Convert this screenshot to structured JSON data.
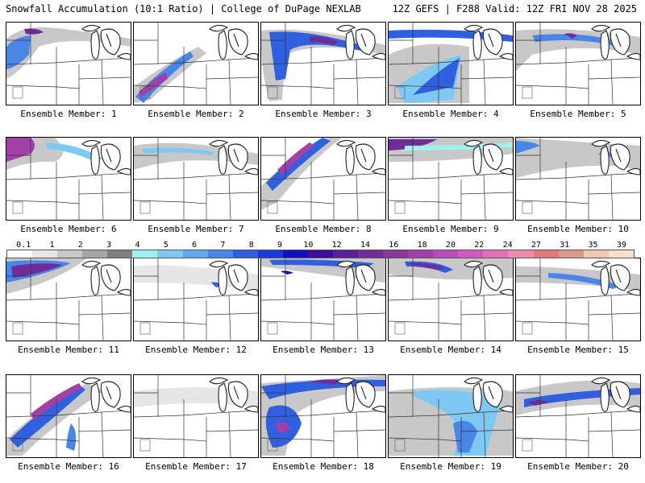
{
  "header": {
    "left": "Snowfall Accumulation (10:1 Ratio) | College of DuPage NEXLAB",
    "right": "12Z GEFS | F288 Valid: 12Z FRI NOV 28 2025"
  },
  "legend": {
    "labels": [
      "0.1",
      "1",
      "2",
      "3",
      "4",
      "5",
      "6",
      "7",
      "8",
      "9",
      "10",
      "12",
      "14",
      "16",
      "18",
      "20",
      "22",
      "24",
      "27",
      "31",
      "35",
      "39"
    ],
    "colors": [
      "#ffffff",
      "#e6e6e6",
      "#c8c8c8",
      "#a5a5a5",
      "#808080",
      "#a0f0f0",
      "#7ec8f4",
      "#62a8ee",
      "#4a86e8",
      "#3060e0",
      "#1c38d8",
      "#1010c0",
      "#400c9c",
      "#58209a",
      "#702c98",
      "#883896",
      "#a040a8",
      "#b84cb8",
      "#d058c0",
      "#e070b8",
      "#ec8cb0",
      "#e27a7a",
      "#d89a88",
      "#f0c8b0",
      "#f8e0cc"
    ]
  },
  "panels": [
    {
      "member": "1",
      "label": "Ensemble Member: 1"
    },
    {
      "member": "2",
      "label": "Ensemble Member: 2"
    },
    {
      "member": "3",
      "label": "Ensemble Member: 3"
    },
    {
      "member": "4",
      "label": "Ensemble Member: 4"
    },
    {
      "member": "5",
      "label": "Ensemble Member: 5"
    },
    {
      "member": "6",
      "label": "Ensemble Member: 6"
    },
    {
      "member": "7",
      "label": "Ensemble Member: 7"
    },
    {
      "member": "8",
      "label": "Ensemble Member: 8"
    },
    {
      "member": "9",
      "label": "Ensemble Member: 9"
    },
    {
      "member": "10",
      "label": "Ensemble Member: 10"
    },
    {
      "member": "11",
      "label": "Ensemble Member: 11"
    },
    {
      "member": "12",
      "label": "Ensemble Member: 12"
    },
    {
      "member": "13",
      "label": "Ensemble Member: 13"
    },
    {
      "member": "14",
      "label": "Ensemble Member: 14"
    },
    {
      "member": "15",
      "label": "Ensemble Member: 15"
    },
    {
      "member": "16",
      "label": "Ensemble Member: 16"
    },
    {
      "member": "17",
      "label": "Ensemble Member: 17"
    },
    {
      "member": "18",
      "label": "Ensemble Member: 18"
    },
    {
      "member": "19",
      "label": "Ensemble Member: 19"
    },
    {
      "member": "20",
      "label": "Ensemble Member: 20"
    }
  ]
}
